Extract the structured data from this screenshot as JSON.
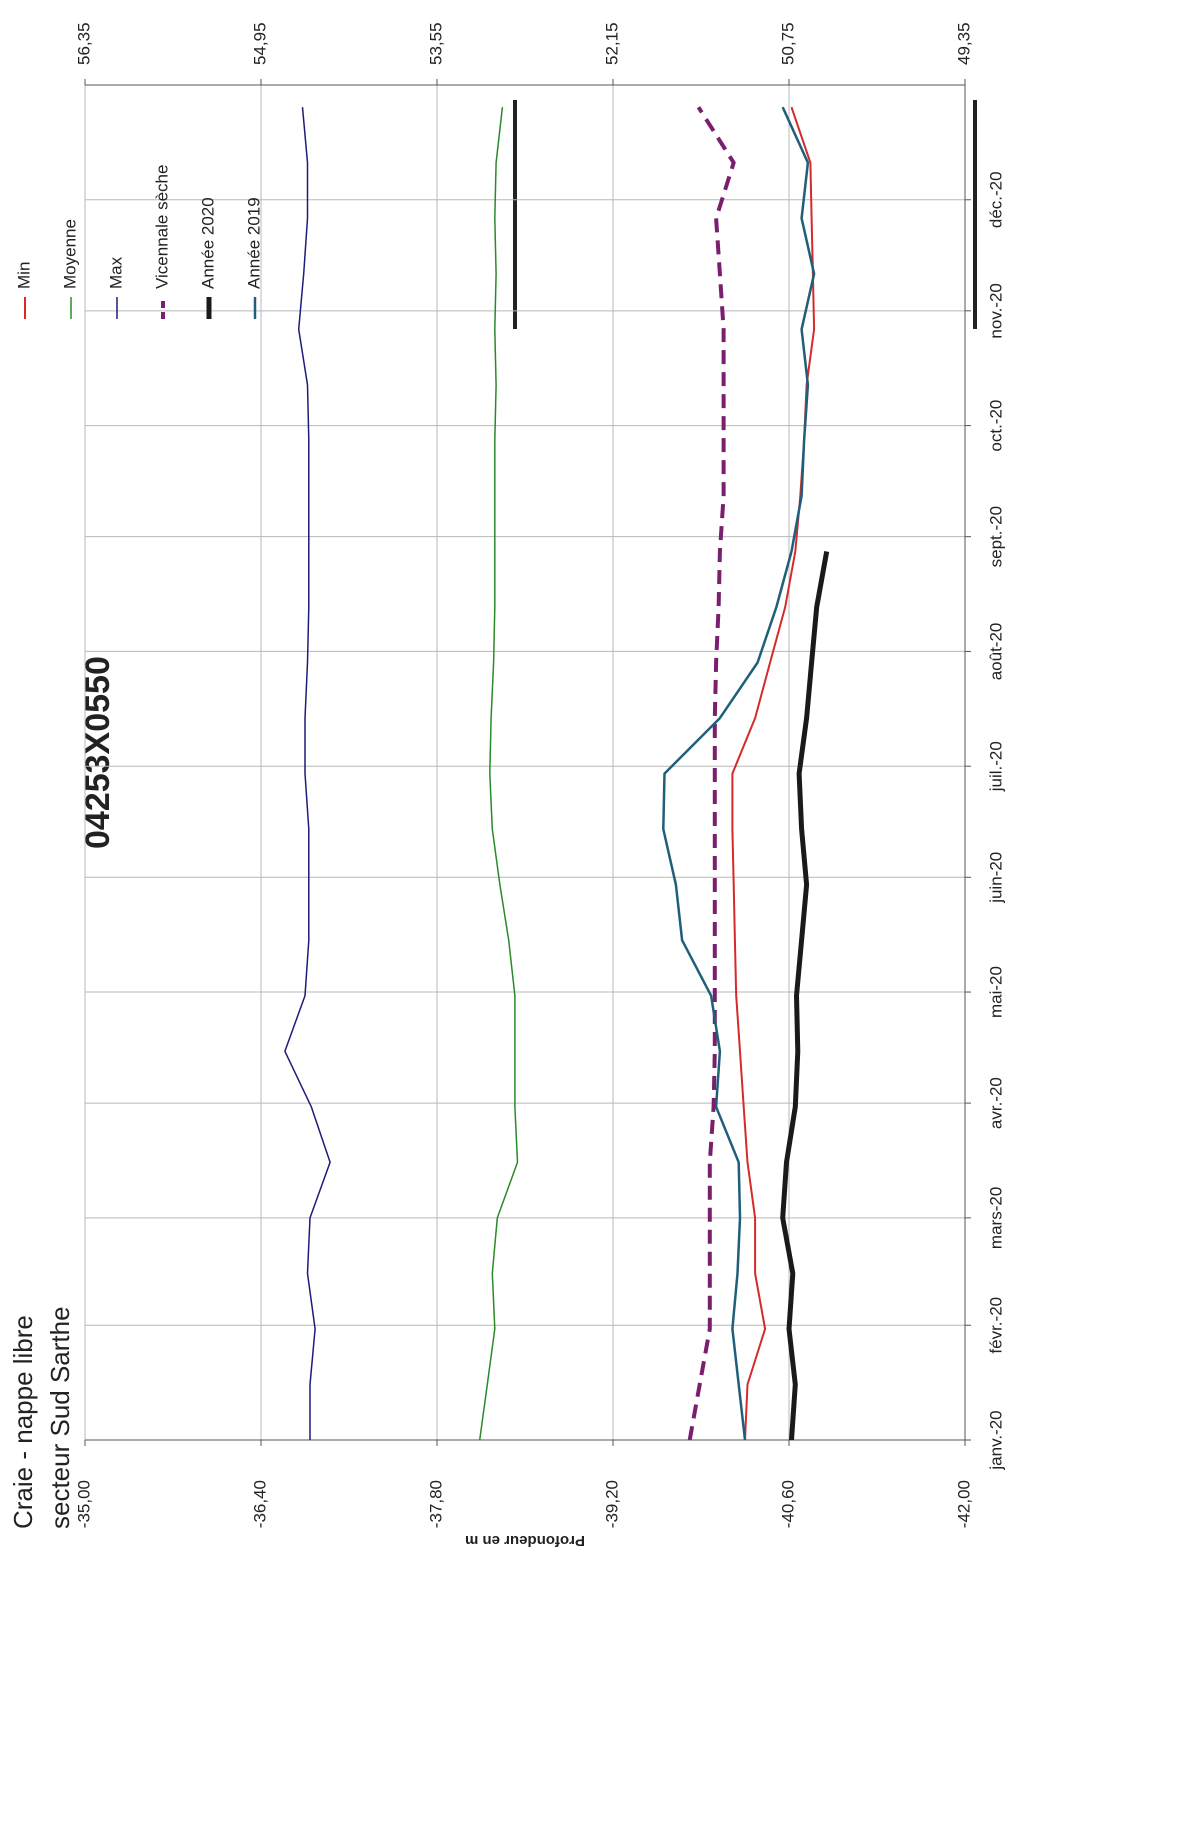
{
  "chart_data": {
    "type": "line",
    "header": [
      "Craie - nappe libre",
      "secteur Sud Sarthe"
    ],
    "title": "04253X0550",
    "ylabel": "Profondeur en m",
    "x": [
      0,
      15,
      30,
      45,
      60,
      75,
      90,
      105,
      120,
      135,
      150,
      165,
      180,
      195,
      210,
      225,
      240,
      255,
      270,
      285,
      300,
      315,
      330,
      345,
      360
    ],
    "xlim": [
      0,
      366
    ],
    "xticks": [
      {
        "value": 0,
        "label": "janv.-20"
      },
      {
        "value": 31,
        "label": "févr.-20"
      },
      {
        "value": 60,
        "label": "mars-20"
      },
      {
        "value": 91,
        "label": "avr.-20"
      },
      {
        "value": 121,
        "label": "mai-20"
      },
      {
        "value": 152,
        "label": "juin-20"
      },
      {
        "value": 182,
        "label": "juil.-20"
      },
      {
        "value": 213,
        "label": "août-20"
      },
      {
        "value": 244,
        "label": "sept.-20"
      },
      {
        "value": 274,
        "label": "oct.-20"
      },
      {
        "value": 305,
        "label": "nov.-20"
      },
      {
        "value": 335,
        "label": "déc.-20"
      }
    ],
    "ylim": [
      -35,
      -42
    ],
    "yticks": [
      {
        "value": -35,
        "label": "-35,00"
      },
      {
        "value": -36.4,
        "label": "-36,40"
      },
      {
        "value": -37.8,
        "label": "-37,80"
      },
      {
        "value": -39.2,
        "label": "-39,20"
      },
      {
        "value": -40.6,
        "label": "-40,60"
      },
      {
        "value": -42,
        "label": "-42,00"
      }
    ],
    "y2lim": [
      56.35,
      49.35
    ],
    "y2ticks": [
      {
        "value": 56.35,
        "label": "56,35"
      },
      {
        "value": 54.95,
        "label": "54,95"
      },
      {
        "value": 53.55,
        "label": "53,55"
      },
      {
        "value": 52.15,
        "label": "52,15"
      },
      {
        "value": 50.75,
        "label": "50,75"
      },
      {
        "value": 49.35,
        "label": "49,35"
      }
    ],
    "grid": true,
    "legend": "top-right",
    "series": [
      {
        "name": "Min",
        "color": "#d42a2a",
        "linewidth": 2,
        "dashed": false,
        "values": [
          -40.25,
          -40.27,
          -40.41,
          -40.33,
          -40.33,
          -40.27,
          -40.24,
          -40.21,
          -40.18,
          -40.17,
          -40.16,
          -40.15,
          -40.15,
          -40.33,
          -40.45,
          -40.57,
          -40.65,
          -40.69,
          -40.72,
          -40.74,
          -40.8,
          -40.79,
          -40.78,
          -40.77,
          -40.62
        ]
      },
      {
        "name": "Moyenne",
        "color": "#2a8a2a",
        "linewidth": 1.5,
        "dashed": false,
        "values": [
          -38.14,
          -38.2,
          -38.26,
          -38.24,
          -38.28,
          -38.44,
          -38.42,
          -38.42,
          -38.42,
          -38.37,
          -38.3,
          -38.24,
          -38.22,
          -38.23,
          -38.25,
          -38.26,
          -38.26,
          -38.26,
          -38.26,
          -38.27,
          -38.26,
          -38.27,
          -38.26,
          -38.27,
          -38.32
        ]
      },
      {
        "name": "Max",
        "color": "#1c1c7a",
        "linewidth": 1.5,
        "dashed": false,
        "values": [
          -36.79,
          -36.79,
          -36.83,
          -36.77,
          -36.79,
          -36.95,
          -36.8,
          -36.59,
          -36.75,
          -36.78,
          -36.78,
          -36.78,
          -36.75,
          -36.75,
          -36.77,
          -36.78,
          -36.78,
          -36.78,
          -36.78,
          -36.77,
          -36.7,
          -36.74,
          -36.77,
          -36.77,
          -36.73
        ]
      },
      {
        "name": "Vicennale sèche",
        "color": "#7a1f6e",
        "linewidth": 4,
        "dashed": true,
        "values": [
          -39.81,
          -39.89,
          -39.97,
          -39.97,
          -39.97,
          -39.97,
          -40.0,
          -40.01,
          -40.01,
          -40.01,
          -40.01,
          -40.01,
          -40.01,
          -40.01,
          -40.02,
          -40.04,
          -40.05,
          -40.08,
          -40.08,
          -40.08,
          -40.08,
          -40.05,
          -40.02,
          -40.16,
          -39.88
        ]
      },
      {
        "name": "Année 2020",
        "color": "#1a1a1a",
        "linewidth": 5,
        "dashed": false,
        "values": [
          -40.62,
          -40.65,
          -40.6,
          -40.63,
          -40.55,
          -40.58,
          -40.65,
          -40.67,
          -40.66,
          -40.7,
          -40.74,
          -40.7,
          -40.68,
          -40.74,
          -40.78,
          -40.82,
          -40.9,
          null,
          null,
          null,
          null,
          null,
          null,
          null,
          null
        ]
      },
      {
        "name": "Année 2019",
        "color": "#1f5f7a",
        "linewidth": 2.5,
        "dashed": false,
        "values": [
          -40.25,
          -40.2,
          -40.15,
          -40.19,
          -40.21,
          -40.2,
          -40.02,
          -40.05,
          -39.98,
          -39.75,
          -39.7,
          -39.6,
          -39.61,
          -40.05,
          -40.35,
          -40.5,
          -40.62,
          -40.7,
          -40.72,
          -40.75,
          -40.7,
          -40.8,
          -40.7,
          -40.75,
          -40.55
        ]
      }
    ]
  }
}
